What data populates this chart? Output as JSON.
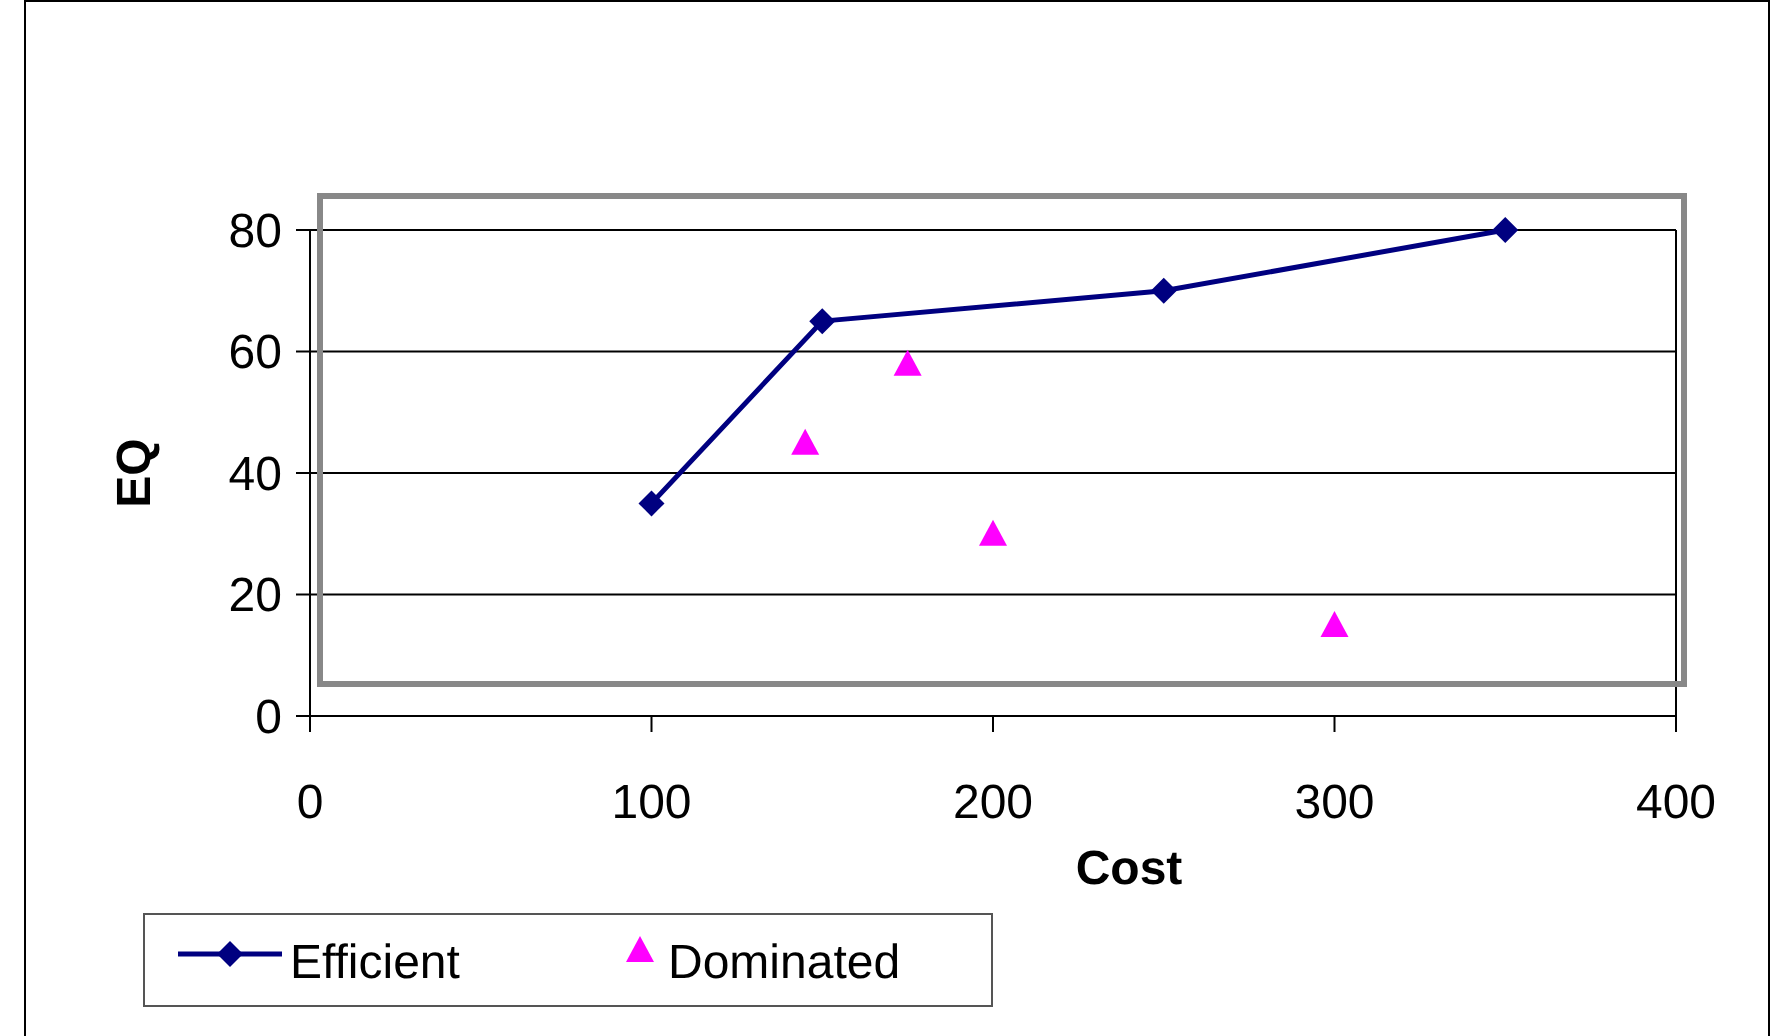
{
  "chart_data": {
    "type": "line",
    "xlabel": "Cost",
    "ylabel": "EQ",
    "xlim": [
      0,
      400
    ],
    "xticks": [
      0,
      100,
      200,
      300,
      400
    ],
    "ylim": [
      0,
      80
    ],
    "yticks": [
      0,
      20,
      40,
      60,
      80
    ],
    "grid": "y",
    "legend": "bottom left",
    "series": [
      {
        "name": "Efficient",
        "color": "#000080",
        "marker": "diamond",
        "x": [
          100,
          150,
          250,
          350
        ],
        "values": [
          35,
          65,
          70,
          80
        ]
      },
      {
        "name": "Dominated",
        "type": "scatter",
        "color": "#ff00ff",
        "marker": "triangle",
        "x": [
          145,
          175,
          200,
          300
        ],
        "values": [
          45,
          58,
          30,
          15
        ]
      }
    ]
  }
}
